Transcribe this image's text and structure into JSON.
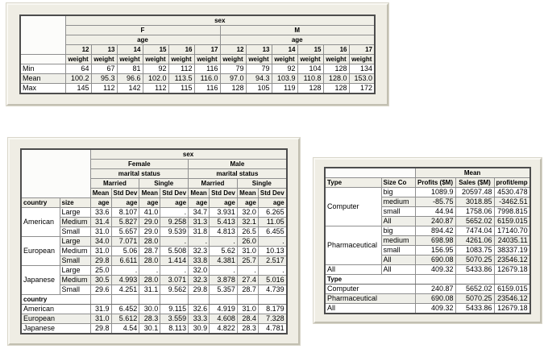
{
  "colors": {
    "page_bg": "#ffffff",
    "panel_bg": "#efede4",
    "header_cell_bg": "#f0efe7",
    "stripe_row_bg": "#efefe9",
    "grid_line": "#8f8f8f",
    "table_outline": "#4d4d4d",
    "text": "#000000"
  },
  "tables": [
    {
      "name": "weight-by-sex-age-table",
      "header_rows": [
        {
          "cells": [
            {
              "k": "blank",
              "r": 4
            },
            {
              "t": "sex",
              "c": 12,
              "k": "hc"
            }
          ]
        },
        {
          "cells": [
            {
              "t": "F",
              "c": 6,
              "k": "hc"
            },
            {
              "t": "M",
              "c": 6,
              "k": "hc"
            }
          ]
        },
        {
          "cells": [
            {
              "t": "age",
              "c": 6,
              "k": "hc"
            },
            {
              "t": "age",
              "c": 6,
              "k": "hc"
            }
          ]
        },
        {
          "cells": [
            {
              "t": "12",
              "k": "hr"
            },
            {
              "t": "13",
              "k": "hr"
            },
            {
              "t": "14",
              "k": "hr"
            },
            {
              "t": "15",
              "k": "hr"
            },
            {
              "t": "16",
              "k": "hr"
            },
            {
              "t": "17",
              "k": "hr"
            },
            {
              "t": "12",
              "k": "hr"
            },
            {
              "t": "13",
              "k": "hr"
            },
            {
              "t": "14",
              "k": "hr"
            },
            {
              "t": "15",
              "k": "hr"
            },
            {
              "t": "16",
              "k": "hr"
            },
            {
              "t": "17",
              "k": "hr"
            }
          ]
        },
        {
          "cells": [
            {
              "k": "blank"
            },
            {
              "t": "weight",
              "k": "hc"
            },
            {
              "t": "weight",
              "k": "hc"
            },
            {
              "t": "weight",
              "k": "hc"
            },
            {
              "t": "weight",
              "k": "hc"
            },
            {
              "t": "weight",
              "k": "hc"
            },
            {
              "t": "weight",
              "k": "hc"
            },
            {
              "t": "weight",
              "k": "hc"
            },
            {
              "t": "weight",
              "k": "hc"
            },
            {
              "t": "weight",
              "k": "hc"
            },
            {
              "t": "weight",
              "k": "hc"
            },
            {
              "t": "weight",
              "k": "hc"
            },
            {
              "t": "weight",
              "k": "hc"
            }
          ]
        }
      ],
      "body_rows": [
        {
          "cells": [
            {
              "t": "Min",
              "k": "lab"
            },
            "64",
            "67",
            "81",
            "92",
            "112",
            "116",
            "79",
            "79",
            "92",
            "104",
            "128",
            "134"
          ]
        },
        {
          "s": 1,
          "cells": [
            {
              "t": "Mean",
              "k": "lab"
            },
            "100.2",
            "95.3",
            "96.6",
            "102.0",
            "113.5",
            "116.0",
            "97.0",
            "94.3",
            "103.9",
            "110.8",
            "128.0",
            "153.0"
          ]
        },
        {
          "cells": [
            {
              "t": "Max",
              "k": "lab"
            },
            "145",
            "112",
            "142",
            "112",
            "115",
            "116",
            "128",
            "105",
            "119",
            "128",
            "128",
            "172"
          ]
        }
      ]
    },
    {
      "name": "age-by-country-size-sex-marital-status-table",
      "header_rows": [
        {
          "cells": [
            {
              "k": "blank",
              "c": 2,
              "r": 5
            },
            {
              "t": "sex",
              "c": 8,
              "k": "hc"
            }
          ]
        },
        {
          "cells": [
            {
              "t": "Female",
              "c": 4,
              "k": "hc"
            },
            {
              "t": "Male",
              "c": 4,
              "k": "hc"
            }
          ]
        },
        {
          "cells": [
            {
              "t": "marital status",
              "c": 4,
              "k": "hc"
            },
            {
              "t": "marital status",
              "c": 4,
              "k": "hc"
            }
          ]
        },
        {
          "cells": [
            {
              "t": "Married",
              "c": 2,
              "k": "hc"
            },
            {
              "t": "Single",
              "c": 2,
              "k": "hc"
            },
            {
              "t": "Married",
              "c": 2,
              "k": "hc"
            },
            {
              "t": "Single",
              "c": 2,
              "k": "hc"
            }
          ]
        },
        {
          "cells": [
            {
              "t": "Mean",
              "k": "hc"
            },
            {
              "t": "Std Dev",
              "k": "hc"
            },
            {
              "t": "Mean",
              "k": "hc"
            },
            {
              "t": "Std Dev",
              "k": "hc"
            },
            {
              "t": "Mean",
              "k": "hc"
            },
            {
              "t": "Std Dev",
              "k": "hc"
            },
            {
              "t": "Mean",
              "k": "hc"
            },
            {
              "t": "Std Dev",
              "k": "hc"
            }
          ]
        },
        {
          "cells": [
            {
              "t": "country",
              "k": "hl"
            },
            {
              "t": "size",
              "k": "hl"
            },
            {
              "t": "age",
              "k": "hr"
            },
            {
              "t": "age",
              "k": "hr"
            },
            {
              "t": "age",
              "k": "hr"
            },
            {
              "t": "age",
              "k": "hr"
            },
            {
              "t": "age",
              "k": "hr"
            },
            {
              "t": "age",
              "k": "hr"
            },
            {
              "t": "age",
              "k": "hr"
            },
            {
              "t": "age",
              "k": "hr"
            }
          ]
        }
      ],
      "body_rows": [
        {
          "cells": [
            {
              "t": "American",
              "k": "lab",
              "r": 3
            },
            {
              "t": "Large",
              "k": "lab"
            },
            "33.6",
            "8.107",
            "41.0",
            ".",
            "34.7",
            "3.931",
            "32.0",
            "6.265"
          ]
        },
        {
          "s": 1,
          "cells": [
            {
              "t": "Medium",
              "k": "lab"
            },
            "31.4",
            "5.827",
            "29.0",
            "9.258",
            "31.3",
            "5.413",
            "32.1",
            "11.05"
          ]
        },
        {
          "cells": [
            {
              "t": "Small",
              "k": "lab"
            },
            "31.0",
            "5.657",
            "29.0",
            "9.539",
            "31.8",
            "4.813",
            "26.5",
            "6.455"
          ]
        },
        {
          "s": 1,
          "cells": [
            {
              "t": "European",
              "k": "lab",
              "r": 3
            },
            {
              "t": "Large",
              "k": "lab"
            },
            "34.0",
            "7.071",
            "28.0",
            ".",
            ".",
            ".",
            "26.0",
            "."
          ]
        },
        {
          "cells": [
            {
              "t": "Medium",
              "k": "lab"
            },
            "31.0",
            "5.06",
            "28.7",
            "5.508",
            "32.3",
            "5.62",
            "31.0",
            "10.13"
          ]
        },
        {
          "s": 1,
          "cells": [
            {
              "t": "Small",
              "k": "lab"
            },
            "29.8",
            "6.611",
            "28.0",
            "1.414",
            "33.8",
            "4.381",
            "25.7",
            "2.517"
          ]
        },
        {
          "cells": [
            {
              "t": "Japanese",
              "k": "lab",
              "r": 3
            },
            {
              "t": "Large",
              "k": "lab"
            },
            "25.0",
            ".",
            ".",
            ".",
            "32.0",
            ".",
            ".",
            "."
          ]
        },
        {
          "s": 1,
          "cells": [
            {
              "t": "Medium",
              "k": "lab"
            },
            "30.5",
            "4.993",
            "28.0",
            "3.071",
            "32.3",
            "3.878",
            "27.4",
            "5.016"
          ]
        },
        {
          "cells": [
            {
              "t": "Small",
              "k": "lab"
            },
            "29.6",
            "4.251",
            "31.1",
            "9.562",
            "29.8",
            "5.357",
            "28.7",
            "4.739"
          ]
        },
        {
          "sec": 1,
          "cells": [
            {
              "t": "country",
              "k": "sec",
              "c": 2
            },
            {
              "k": "num"
            },
            {
              "k": "num"
            },
            {
              "k": "num"
            },
            {
              "k": "num"
            },
            {
              "k": "num"
            },
            {
              "k": "num"
            },
            {
              "k": "num"
            },
            {
              "k": "num"
            }
          ]
        },
        {
          "cells": [
            {
              "t": "American",
              "k": "lab",
              "c": 2
            },
            "31.9",
            "6.452",
            "30.0",
            "9.115",
            "32.6",
            "4.919",
            "31.0",
            "8.179"
          ]
        },
        {
          "s": 1,
          "cells": [
            {
              "t": "European",
              "k": "lab",
              "c": 2
            },
            "31.0",
            "5.612",
            "28.3",
            "3.559",
            "33.3",
            "4.608",
            "28.4",
            "7.328"
          ]
        },
        {
          "cells": [
            {
              "t": "Japanese",
              "k": "lab",
              "c": 2
            },
            "29.8",
            "4.54",
            "30.1",
            "8.113",
            "30.9",
            "4.822",
            "28.3",
            "4.781"
          ]
        }
      ]
    },
    {
      "name": "company-type-size-mean-table",
      "header_rows": [
        {
          "cells": [
            {
              "k": "blank",
              "c": 2
            },
            {
              "t": "Mean",
              "c": 3,
              "k": "hc"
            }
          ]
        },
        {
          "cells": [
            {
              "t": "Type",
              "k": "hl"
            },
            {
              "t": "Size Co",
              "k": "hl"
            },
            {
              "t": "Profits ($M)",
              "k": "hc"
            },
            {
              "t": "Sales ($M)",
              "k": "hc"
            },
            {
              "t": "profit/emp",
              "k": "hc"
            }
          ]
        }
      ],
      "body_rows": [
        {
          "cells": [
            {
              "t": "Computer",
              "k": "lab",
              "r": 4
            },
            {
              "t": "big",
              "k": "lab"
            },
            "1089.9",
            "20597.48",
            "4530.478"
          ]
        },
        {
          "s": 1,
          "cells": [
            {
              "t": "medium",
              "k": "lab"
            },
            "-85.75",
            "3018.85",
            "-3462.51"
          ]
        },
        {
          "cells": [
            {
              "t": "small",
              "k": "lab"
            },
            "44.94",
            "1758.06",
            "7998.815"
          ]
        },
        {
          "s": 1,
          "cells": [
            {
              "t": "All",
              "k": "lab"
            },
            "240.87",
            "5652.02",
            "6159.015"
          ]
        },
        {
          "cells": [
            {
              "t": "Pharmaceutical",
              "k": "lab",
              "r": 4
            },
            {
              "t": "big",
              "k": "lab"
            },
            "894.42",
            "7474.04",
            "17140.70"
          ]
        },
        {
          "s": 1,
          "cells": [
            {
              "t": "medium",
              "k": "lab"
            },
            "698.98",
            "4261.06",
            "24035.11"
          ]
        },
        {
          "cells": [
            {
              "t": "small",
              "k": "lab"
            },
            "156.95",
            "1083.75",
            "38337.19"
          ]
        },
        {
          "s": 1,
          "cells": [
            {
              "t": "All",
              "k": "lab"
            },
            "690.08",
            "5070.25",
            "23546.12"
          ]
        },
        {
          "cells": [
            {
              "t": "All",
              "k": "lab"
            },
            {
              "t": "All",
              "k": "lab"
            },
            "409.32",
            "5433.86",
            "12679.18"
          ]
        },
        {
          "sec": 1,
          "cells": [
            {
              "t": "Type",
              "k": "sec",
              "c": 2
            },
            {
              "k": "num"
            },
            {
              "k": "num"
            },
            {
              "k": "num"
            }
          ]
        },
        {
          "cells": [
            {
              "t": "Computer",
              "k": "lab",
              "c": 2
            },
            "240.87",
            "5652.02",
            "6159.015"
          ]
        },
        {
          "s": 1,
          "cells": [
            {
              "t": "Pharmaceutical",
              "k": "lab",
              "c": 2
            },
            "690.08",
            "5070.25",
            "23546.12"
          ]
        },
        {
          "cells": [
            {
              "t": "All",
              "k": "lab",
              "c": 2
            },
            "409.32",
            "5433.86",
            "12679.18"
          ]
        }
      ]
    }
  ]
}
